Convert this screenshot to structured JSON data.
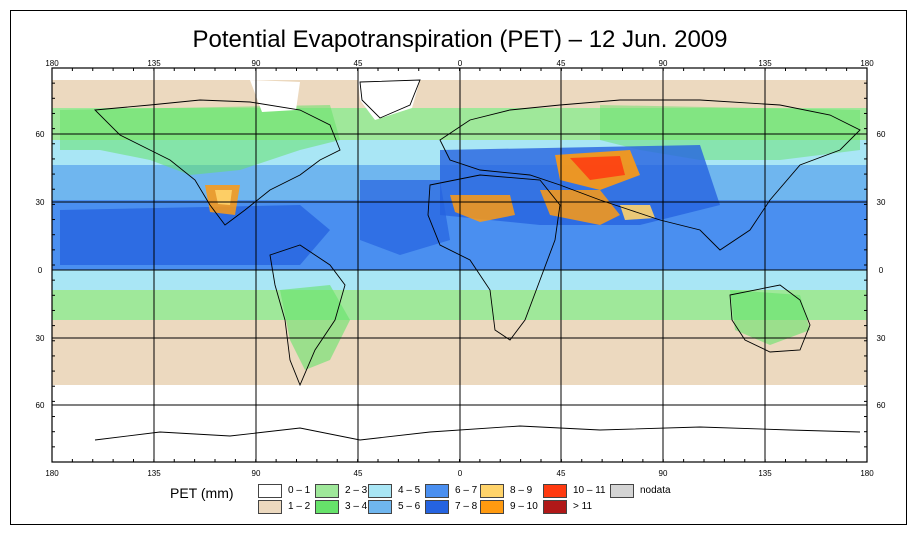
{
  "title": "Potential Evapotranspiration (PET) – 12 Jun. 2009",
  "axis": {
    "lon_labels": [
      "180",
      "135",
      "90",
      "45",
      "0",
      "45",
      "90",
      "135",
      "180"
    ],
    "lat_labels": [
      "60",
      "30",
      "0",
      "30",
      "60"
    ]
  },
  "legend": {
    "title": "PET (mm)",
    "items": [
      {
        "label": "0 – 1",
        "color": "#ffffff"
      },
      {
        "label": "1 – 2",
        "color": "#ecd9bf"
      },
      {
        "label": "2 – 3",
        "color": "#9fe89a"
      },
      {
        "label": "3 – 4",
        "color": "#66e26a"
      },
      {
        "label": "4 – 5",
        "color": "#a9e6f5"
      },
      {
        "label": "5 – 6",
        "color": "#6fb6ef"
      },
      {
        "label": "6 – 7",
        "color": "#4a8ff0"
      },
      {
        "label": "7 – 8",
        "color": "#2563e0"
      },
      {
        "label": "8 – 9",
        "color": "#ffd36a"
      },
      {
        "label": "9 – 10",
        "color": "#ff9a10"
      },
      {
        "label": "10 – 11",
        "color": "#ff3a10"
      },
      {
        "label": "> 11",
        "color": "#b01818"
      },
      {
        "label": "nodata",
        "color": "#d4d4d4"
      }
    ]
  }
}
